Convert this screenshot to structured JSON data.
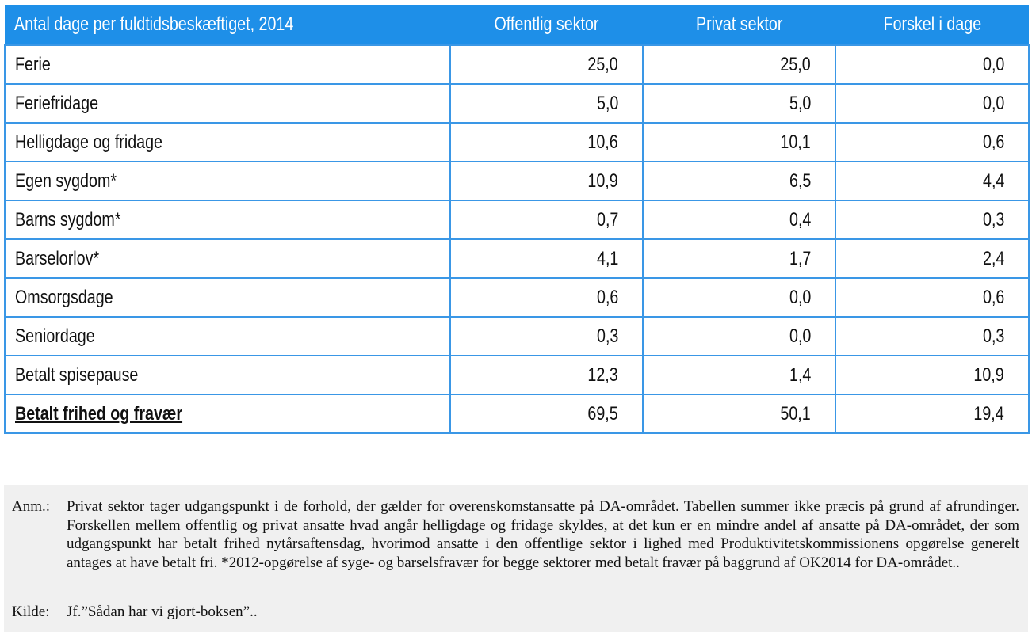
{
  "table": {
    "headers": [
      "Antal dage per fuldtidsbeskæftiget, 2014",
      "Offentlig sektor",
      "Privat sektor",
      "Forskel i dage"
    ],
    "rows": [
      {
        "label": "Ferie",
        "offentlig": "25,0",
        "privat": "25,0",
        "forskel": "0,0"
      },
      {
        "label": "Feriefridage",
        "offentlig": "5,0",
        "privat": "5,0",
        "forskel": "0,0"
      },
      {
        "label": "Helligdage og fridage",
        "offentlig": "10,6",
        "privat": "10,1",
        "forskel": "0,6"
      },
      {
        "label": "Egen sygdom*",
        "offentlig": "10,9",
        "privat": "6,5",
        "forskel": "4,4"
      },
      {
        "label": "Barns sygdom*",
        "offentlig": "0,7",
        "privat": "0,4",
        "forskel": "0,3"
      },
      {
        "label": "Barselorlov*",
        "offentlig": "4,1",
        "privat": "1,7",
        "forskel": "2,4"
      },
      {
        "label": "Omsorgsdage",
        "offentlig": "0,6",
        "privat": "0,0",
        "forskel": "0,6"
      },
      {
        "label": "Seniordage",
        "offentlig": "0,3",
        "privat": "0,0",
        "forskel": "0,3"
      },
      {
        "label": "Betalt spisepause",
        "offentlig": "12,3",
        "privat": "1,4",
        "forskel": "10,9"
      }
    ],
    "total": {
      "label": "Betalt frihed og fravær",
      "offentlig": "69,5",
      "privat": "50,1",
      "forskel": "19,4"
    }
  },
  "notes": {
    "anm_label": "Anm.:",
    "anm_text": "Privat sektor tager udgangspunkt i de forhold, der gælder for overenskomstansatte på DA-området. Tabellen summer ikke præcis på grund af afrundinger. Forskellen mellem offentlig og privat ansatte hvad angår helligdage og fridage skyldes, at det kun er en mindre andel af ansatte på DA-området, der som udgangspunkt har betalt frihed nytårsaftensdag, hvorimod ansatte i den offentlige sektor i lighed med Produktivitetskommissionens opgørelse generelt antages at have betalt fri. *2012-opgørelse af syge- og barselsfravær for begge sektorer med betalt fravær på baggrund af OK2014 for DA-området..",
    "kilde_label": "Kilde:",
    "kilde_text": "Jf.”Sådan har vi gjort-boksen”.."
  },
  "colors": {
    "header_bg": "#1e8fe8",
    "border": "#3a97e6",
    "note_bg": "#f0f0f0"
  }
}
